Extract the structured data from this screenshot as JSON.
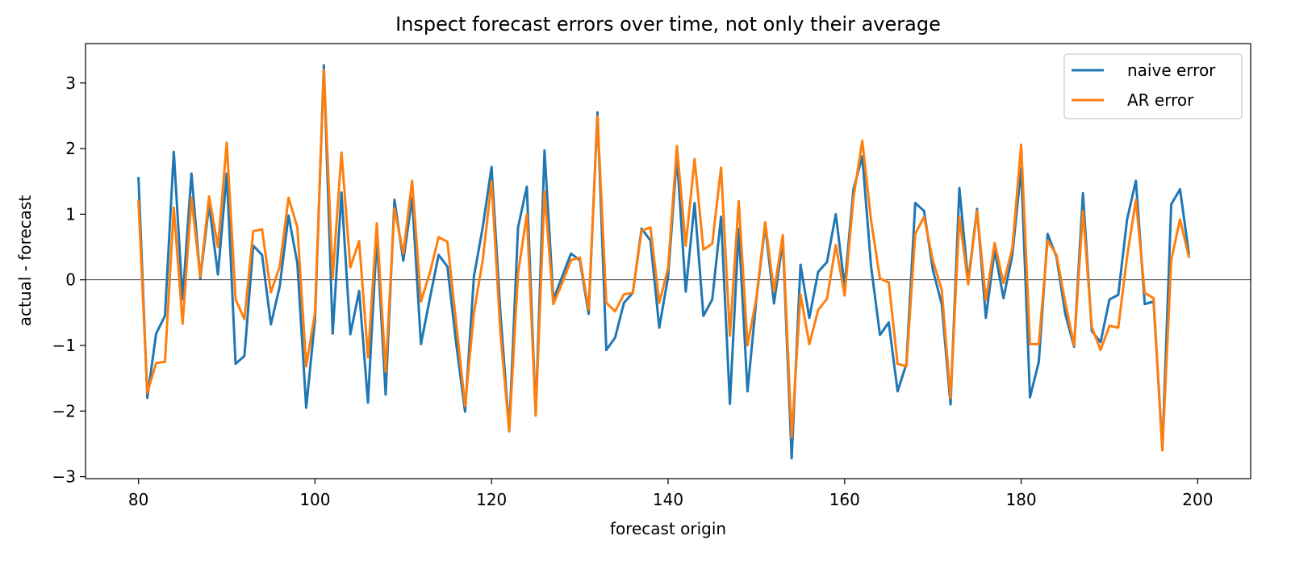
{
  "chart_data": {
    "type": "line",
    "title": "Inspect forecast errors over time, not only their average",
    "xlabel": "forecast origin",
    "ylabel": "actual - forecast",
    "xlim": [
      74,
      206
    ],
    "ylim": [
      -3.03,
      3.6
    ],
    "xticks": [
      80,
      100,
      120,
      140,
      160,
      180,
      200
    ],
    "yticks": [
      -3,
      -2,
      -1,
      0,
      1,
      2,
      3
    ],
    "ytick_labels": [
      "−3",
      "−2",
      "−1",
      "0",
      "1",
      "2",
      "3"
    ],
    "zero_line": true,
    "grid": false,
    "legend": "upper right",
    "x": [
      80,
      81,
      82,
      83,
      84,
      85,
      86,
      87,
      88,
      89,
      90,
      91,
      92,
      93,
      94,
      95,
      96,
      97,
      98,
      99,
      100,
      101,
      102,
      103,
      104,
      105,
      106,
      107,
      108,
      109,
      110,
      111,
      112,
      113,
      114,
      115,
      116,
      117,
      118,
      119,
      120,
      121,
      122,
      123,
      124,
      125,
      126,
      127,
      128,
      129,
      130,
      131,
      132,
      133,
      134,
      135,
      136,
      137,
      138,
      139,
      140,
      141,
      142,
      143,
      144,
      145,
      146,
      147,
      148,
      149,
      150,
      151,
      152,
      153,
      154,
      155,
      156,
      157,
      158,
      159,
      160,
      161,
      162,
      163,
      164,
      165,
      166,
      167,
      168,
      169,
      170,
      171,
      172,
      173,
      174,
      175,
      176,
      177,
      178,
      179,
      180,
      181,
      182,
      183,
      184,
      185,
      186,
      187,
      188,
      189,
      190,
      191,
      192,
      193,
      194,
      195,
      196,
      197,
      198,
      199
    ],
    "series": [
      {
        "name": "naive error",
        "color": "#1f77b4",
        "values": [
          1.55,
          -1.8,
          -0.82,
          -0.55,
          1.95,
          -0.3,
          1.62,
          0.02,
          1.15,
          0.08,
          1.62,
          -1.28,
          -1.16,
          0.52,
          0.38,
          -0.68,
          -0.1,
          0.98,
          0.25,
          -1.95,
          -0.6,
          3.27,
          -0.82,
          1.33,
          -0.83,
          -0.17,
          -1.87,
          0.65,
          -1.75,
          1.22,
          0.29,
          1.25,
          -0.98,
          -0.29,
          0.38,
          0.2,
          -0.98,
          -2.01,
          0.05,
          0.8,
          1.72,
          -0.5,
          -2.3,
          0.8,
          1.42,
          -2.05,
          1.97,
          -0.3,
          0.05,
          0.4,
          0.3,
          -0.52,
          2.55,
          -1.07,
          -0.88,
          -0.35,
          -0.2,
          0.78,
          0.6,
          -0.73,
          0.05,
          1.88,
          -0.18,
          1.17,
          -0.55,
          -0.3,
          0.96,
          -1.89,
          0.78,
          -1.7,
          -0.3,
          0.83,
          -0.36,
          0.6,
          -2.72,
          0.23,
          -0.58,
          0.12,
          0.27,
          1.0,
          -0.1,
          1.38,
          1.88,
          0.2,
          -0.84,
          -0.65,
          -1.7,
          -1.28,
          1.17,
          1.05,
          0.15,
          -0.37,
          -1.9,
          1.4,
          -0.03,
          1.08,
          -0.58,
          0.45,
          -0.28,
          0.38,
          1.7,
          -1.79,
          -1.25,
          0.7,
          0.35,
          -0.52,
          -1.02,
          1.32,
          -0.78,
          -0.95,
          -0.3,
          -0.23,
          0.92,
          1.51,
          -0.37,
          -0.33,
          -2.58,
          1.15,
          1.38,
          0.4
        ]
      },
      {
        "name": "AR error",
        "color": "#ff7f0e",
        "values": [
          1.2,
          -1.72,
          -1.27,
          -1.25,
          1.1,
          -0.67,
          1.25,
          0.05,
          1.27,
          0.5,
          2.09,
          -0.3,
          -0.6,
          0.74,
          0.77,
          -0.19,
          0.2,
          1.25,
          0.8,
          -1.32,
          -0.5,
          3.2,
          0.03,
          1.94,
          0.19,
          0.59,
          -1.18,
          0.86,
          -1.4,
          1.09,
          0.4,
          1.51,
          -0.33,
          0.1,
          0.65,
          0.58,
          -0.67,
          -1.92,
          -0.5,
          0.3,
          1.5,
          -0.8,
          -2.31,
          0.1,
          1.0,
          -2.07,
          1.35,
          -0.37,
          -0.05,
          0.3,
          0.34,
          -0.45,
          2.49,
          -0.35,
          -0.48,
          -0.22,
          -0.2,
          0.75,
          0.8,
          -0.35,
          0.18,
          2.04,
          0.52,
          1.84,
          0.46,
          0.55,
          1.71,
          -0.85,
          1.2,
          -1.0,
          -0.28,
          0.88,
          -0.18,
          0.68,
          -2.4,
          -0.22,
          -0.98,
          -0.46,
          -0.29,
          0.53,
          -0.24,
          1.25,
          2.12,
          0.9,
          0.02,
          -0.04,
          -1.28,
          -1.32,
          0.7,
          0.96,
          0.29,
          -0.15,
          -1.8,
          0.96,
          -0.07,
          1.05,
          -0.31,
          0.56,
          -0.05,
          0.48,
          2.06,
          -0.98,
          -0.98,
          0.6,
          0.38,
          -0.35,
          -1.0,
          1.05,
          -0.72,
          -1.07,
          -0.7,
          -0.73,
          0.35,
          1.22,
          -0.2,
          -0.28,
          -2.6,
          0.3,
          0.92,
          0.35
        ]
      }
    ]
  }
}
